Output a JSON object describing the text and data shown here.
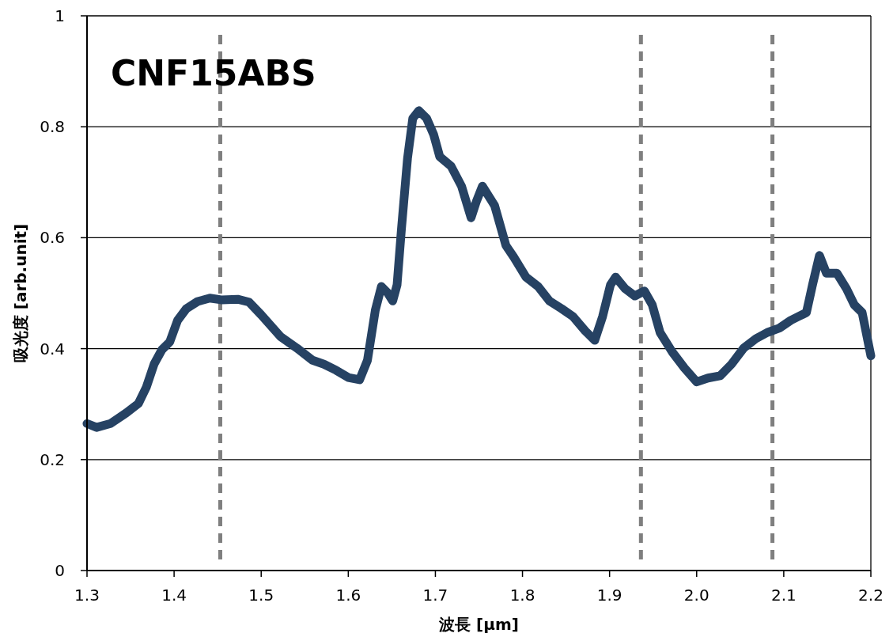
{
  "chart_data": {
    "type": "line",
    "xlabel": "波長 [μm]",
    "ylabel": "吸光度 [arb.unit]",
    "annotations": [
      "CNF15ABS"
    ],
    "xlim": [
      1.3,
      2.2
    ],
    "ylim": [
      0,
      1
    ],
    "xticks": [
      {
        "value": 1.3,
        "label": "1.3"
      },
      {
        "value": 1.4,
        "label": "1.4"
      },
      {
        "value": 1.5,
        "label": "1.5"
      },
      {
        "value": 1.6,
        "label": "1.6"
      },
      {
        "value": 1.7,
        "label": "1.7"
      },
      {
        "value": 1.8,
        "label": "1.8"
      },
      {
        "value": 1.9,
        "label": "1.9"
      },
      {
        "value": 2.0,
        "label": "2.0"
      },
      {
        "value": 2.1,
        "label": "2.1"
      },
      {
        "value": 2.2,
        "label": "2.2"
      }
    ],
    "yticks": [
      0,
      {
        "value": 0.2,
        "label": "0.2"
      },
      {
        "value": 0.4,
        "label": "0.4"
      },
      {
        "value": 0.6,
        "label": "0.6"
      },
      {
        "value": 0.8,
        "label": "0.8"
      },
      1
    ],
    "grid": "y",
    "marker": "none",
    "line_style": "solid",
    "ref_lines": [
      {
        "axis": "x",
        "value": 1.453,
        "color": "#7f7f7f",
        "line_style": "dashed"
      },
      {
        "axis": "x",
        "value": 1.936,
        "color": "#7f7f7f",
        "line_style": "dashed"
      },
      {
        "axis": "x",
        "value": 2.087,
        "color": "#7f7f7f",
        "line_style": "dashed"
      }
    ],
    "series": [
      {
        "color": "#264263",
        "x": [
          1.3,
          1.311,
          1.327,
          1.345,
          1.359,
          1.368,
          1.377,
          1.386,
          1.395,
          1.404,
          1.414,
          1.427,
          1.441,
          1.454,
          1.473,
          1.486,
          1.5,
          1.522,
          1.541,
          1.559,
          1.572,
          1.586,
          1.6,
          1.613,
          1.622,
          1.631,
          1.638,
          1.645,
          1.651,
          1.656,
          1.661,
          1.668,
          1.674,
          1.681,
          1.69,
          1.698,
          1.705,
          1.718,
          1.73,
          1.741,
          1.747,
          1.754,
          1.768,
          1.781,
          1.79,
          1.804,
          1.818,
          1.831,
          1.845,
          1.858,
          1.872,
          1.883,
          1.892,
          1.901,
          1.907,
          1.918,
          1.929,
          1.94,
          1.949,
          1.958,
          1.972,
          1.986,
          2.0,
          2.013,
          2.027,
          2.04,
          2.054,
          2.068,
          2.081,
          2.095,
          2.108,
          2.117,
          2.126,
          2.133,
          2.141,
          2.149,
          2.161,
          2.172,
          2.181,
          2.19,
          2.2
        ],
        "values": [
          0.265,
          0.258,
          0.265,
          0.284,
          0.301,
          0.33,
          0.372,
          0.398,
          0.412,
          0.451,
          0.472,
          0.485,
          0.491,
          0.488,
          0.489,
          0.484,
          0.461,
          0.422,
          0.401,
          0.379,
          0.372,
          0.361,
          0.348,
          0.344,
          0.379,
          0.469,
          0.512,
          0.501,
          0.486,
          0.515,
          0.615,
          0.743,
          0.815,
          0.829,
          0.815,
          0.786,
          0.746,
          0.729,
          0.693,
          0.636,
          0.665,
          0.693,
          0.658,
          0.586,
          0.565,
          0.529,
          0.512,
          0.486,
          0.472,
          0.458,
          0.432,
          0.415,
          0.458,
          0.515,
          0.529,
          0.508,
          0.495,
          0.504,
          0.479,
          0.429,
          0.394,
          0.365,
          0.34,
          0.347,
          0.351,
          0.372,
          0.401,
          0.418,
          0.429,
          0.437,
          0.451,
          0.458,
          0.465,
          0.515,
          0.568,
          0.536,
          0.536,
          0.508,
          0.479,
          0.465,
          0.387
        ]
      }
    ]
  }
}
